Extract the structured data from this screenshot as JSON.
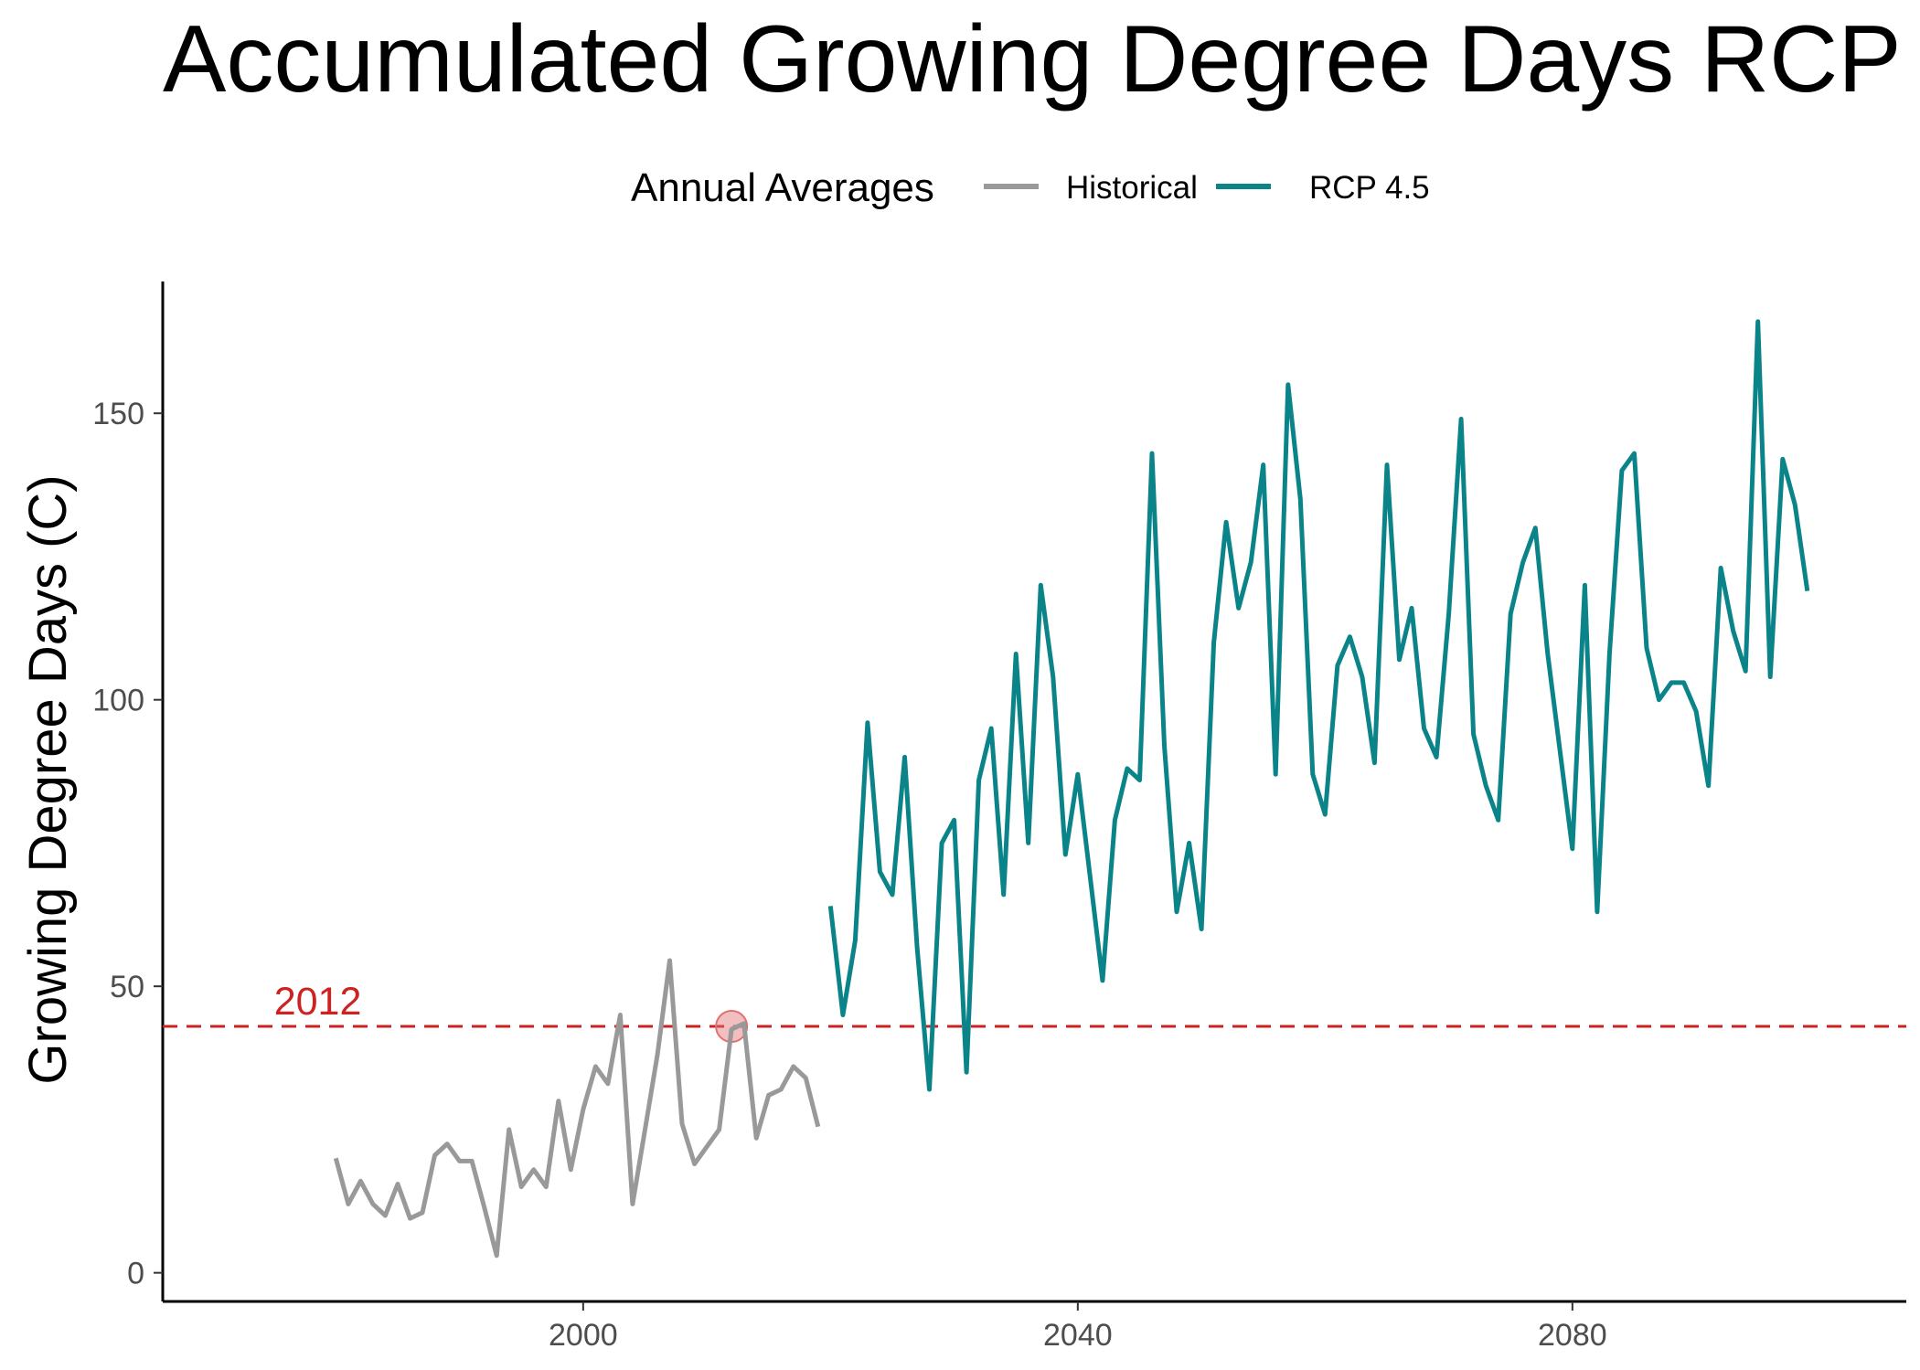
{
  "chart_data": {
    "type": "line",
    "title": "Accumulated Growing Degree Days RCP",
    "ylabel": "Growing Degree Days (C)",
    "xlabel": "",
    "xlim": [
      1966,
      2107
    ],
    "ylim": [
      -5,
      173
    ],
    "xticks": [
      2000,
      2040,
      2080
    ],
    "yticks": [
      0,
      50,
      100,
      150
    ],
    "grid": false,
    "legend": {
      "title": "Annual Averages",
      "position": "top"
    },
    "series": [
      {
        "name": "Historical",
        "color": "#999999",
        "x": [
          1980,
          1981,
          1982,
          1983,
          1984,
          1985,
          1986,
          1987,
          1988,
          1989,
          1990,
          1991,
          1992,
          1993,
          1994,
          1995,
          1996,
          1997,
          1998,
          1999,
          2000,
          2001,
          2002,
          2003,
          2004,
          2005,
          2006,
          2007,
          2008,
          2009,
          2010,
          2011,
          2012,
          2013,
          2014,
          2015,
          2016,
          2017,
          2018,
          2019
        ],
        "y": [
          20,
          12,
          16,
          12,
          10,
          15.5,
          9.5,
          10.5,
          20.5,
          22.5,
          19.5,
          19.5,
          11.5,
          3,
          25,
          15,
          18,
          15,
          30,
          18,
          28.5,
          36,
          33,
          45,
          12,
          25,
          38,
          54.5,
          26,
          19,
          22,
          25,
          42.5,
          43.5,
          23.5,
          31,
          32,
          36,
          34,
          25.5
        ]
      },
      {
        "name": "RCP 4.5",
        "color": "#0b8489",
        "x": [
          2020,
          2021,
          2022,
          2023,
          2024,
          2025,
          2026,
          2027,
          2028,
          2029,
          2030,
          2031,
          2032,
          2033,
          2034,
          2035,
          2036,
          2037,
          2038,
          2039,
          2040,
          2041,
          2042,
          2043,
          2044,
          2045,
          2046,
          2047,
          2048,
          2049,
          2050,
          2051,
          2052,
          2053,
          2054,
          2055,
          2056,
          2057,
          2058,
          2059,
          2060,
          2061,
          2062,
          2063,
          2064,
          2065,
          2066,
          2067,
          2068,
          2069,
          2070,
          2071,
          2072,
          2073,
          2074,
          2075,
          2076,
          2077,
          2078,
          2079,
          2080,
          2081,
          2082,
          2083,
          2084,
          2085,
          2086,
          2087,
          2088,
          2089,
          2090,
          2091,
          2092,
          2093,
          2094,
          2095,
          2096,
          2097,
          2098,
          2099
        ],
        "y": [
          64,
          45,
          58,
          96,
          70,
          66,
          90,
          57,
          32,
          75,
          79,
          35,
          86,
          95,
          66,
          108,
          75,
          120,
          104,
          73,
          87,
          69,
          51,
          79,
          88,
          86,
          143,
          92,
          63,
          75,
          60,
          110,
          131,
          116,
          124,
          141,
          87,
          155,
          135,
          87,
          80,
          106,
          111,
          104,
          89,
          141,
          107,
          116,
          95,
          90,
          115,
          149,
          94,
          85,
          79,
          115,
          124,
          130,
          108,
          91,
          74,
          120,
          63,
          108,
          140,
          143,
          109,
          100,
          103,
          103,
          98,
          85,
          123,
          112,
          105,
          166,
          104,
          142,
          134,
          119
        ]
      }
    ],
    "annotations": [
      {
        "type": "hline",
        "y": 43,
        "color": "#cc2222",
        "style": "dashed"
      },
      {
        "type": "text",
        "text": "2012",
        "x": 1975,
        "y": 47,
        "color": "#cc2222"
      },
      {
        "type": "point",
        "x": 2012,
        "y": 43,
        "color": "#e07070"
      }
    ]
  }
}
